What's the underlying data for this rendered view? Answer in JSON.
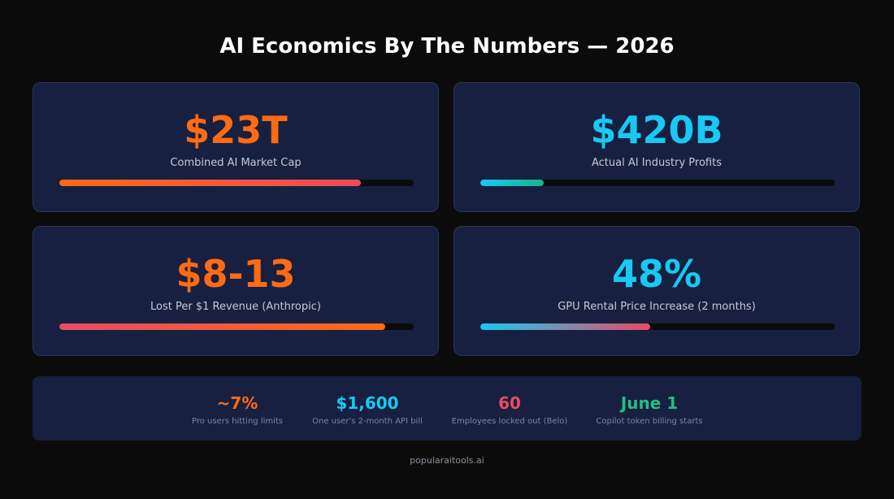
{
  "title": "AI Economics By The Numbers — 2026",
  "cards": [
    {
      "value": "$23T",
      "label": "Combined AI Market Cap",
      "progress": 0.85,
      "color": "#ff6a13"
    },
    {
      "value": "$420B",
      "label": "Actual AI Industry Profits",
      "progress": 0.18,
      "color": "#17c9f3"
    },
    {
      "value": "$8-13",
      "label": "Lost Per $1 Revenue (Anthropic)",
      "progress": 0.92,
      "color": "#ff6a13"
    },
    {
      "value": "48%",
      "label": "GPU Rental Price Increase (2 months)",
      "progress": 0.48,
      "color": "#17c9f3"
    }
  ],
  "stats": [
    {
      "value": "~7%",
      "desc": "Pro users hitting limits",
      "color": "#ff6a13"
    },
    {
      "value": "$1,600",
      "desc": "One user's 2-month API bill",
      "color": "#17c9f3"
    },
    {
      "value": "60",
      "desc": "Employees locked out (Belo)",
      "color": "#e84b64"
    },
    {
      "value": "June 1",
      "desc": "Copilot token billing starts",
      "color": "#21c07f"
    }
  ],
  "footer": "popularaitools.ai"
}
